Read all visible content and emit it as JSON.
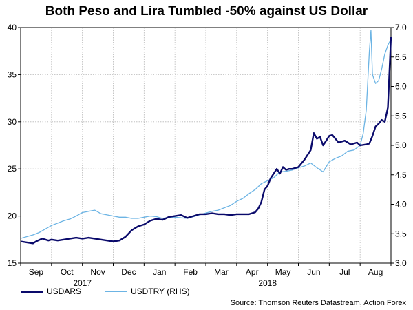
{
  "chart_data": {
    "type": "line",
    "title": "Both Peso and Lira Tumbled -50% against US Dollar",
    "left_axis": {
      "ylim": [
        15,
        40
      ],
      "ticks": [
        15,
        20,
        25,
        30,
        35,
        40
      ]
    },
    "right_axis": {
      "ylim": [
        3.0,
        7.0
      ],
      "ticks": [
        "3.0",
        "3.5",
        "4.0",
        "4.5",
        "5.0",
        "5.5",
        "6.0",
        "6.5",
        "7.0"
      ]
    },
    "x_range": [
      0,
      12
    ],
    "months": [
      {
        "label": "Sep",
        "pos": 0.5
      },
      {
        "label": "Oct",
        "pos": 1.5
      },
      {
        "label": "Nov",
        "pos": 2.5
      },
      {
        "label": "Dec",
        "pos": 3.5
      },
      {
        "label": "Jan",
        "pos": 4.5
      },
      {
        "label": "Feb",
        "pos": 5.5
      },
      {
        "label": "Mar",
        "pos": 6.5
      },
      {
        "label": "Apr",
        "pos": 7.5
      },
      {
        "label": "May",
        "pos": 8.5
      },
      {
        "label": "Jun",
        "pos": 9.5
      },
      {
        "label": "Jul",
        "pos": 10.5
      },
      {
        "label": "Aug",
        "pos": 11.5
      }
    ],
    "years": [
      {
        "label": "2017",
        "pos": 2.0
      },
      {
        "label": "2018",
        "pos": 8.0
      }
    ],
    "gridlines_x": [
      1,
      2,
      3,
      4,
      5,
      6,
      7,
      8,
      9,
      10,
      11
    ],
    "series": [
      {
        "name": "USDARS",
        "axis": "left",
        "color": "#0a0a6b",
        "x": [
          0,
          0.2,
          0.4,
          0.5,
          0.7,
          0.9,
          1.0,
          1.2,
          1.4,
          1.6,
          1.8,
          2.0,
          2.2,
          2.4,
          2.6,
          2.8,
          3.0,
          3.2,
          3.4,
          3.6,
          3.8,
          4.0,
          4.2,
          4.4,
          4.6,
          4.8,
          5.0,
          5.2,
          5.4,
          5.6,
          5.8,
          6.0,
          6.2,
          6.4,
          6.6,
          6.8,
          7.0,
          7.2,
          7.4,
          7.6,
          7.7,
          7.8,
          7.9,
          8.0,
          8.1,
          8.2,
          8.3,
          8.4,
          8.5,
          8.6,
          8.7,
          8.8,
          9.0,
          9.2,
          9.4,
          9.5,
          9.6,
          9.7,
          9.8,
          9.9,
          10.0,
          10.1,
          10.3,
          10.5,
          10.7,
          10.9,
          11.0,
          11.2,
          11.3,
          11.4,
          11.5,
          11.6,
          11.7,
          11.8,
          11.9,
          12.0
        ],
        "values": [
          17.3,
          17.2,
          17.1,
          17.3,
          17.6,
          17.4,
          17.5,
          17.4,
          17.5,
          17.6,
          17.7,
          17.6,
          17.7,
          17.6,
          17.5,
          17.4,
          17.3,
          17.4,
          17.8,
          18.5,
          18.9,
          19.1,
          19.5,
          19.7,
          19.6,
          19.9,
          20.0,
          20.1,
          19.8,
          20.0,
          20.2,
          20.2,
          20.3,
          20.2,
          20.2,
          20.1,
          20.2,
          20.2,
          20.2,
          20.4,
          20.8,
          21.5,
          22.8,
          23.2,
          24.0,
          24.5,
          25.0,
          24.5,
          25.2,
          24.9,
          25.0,
          25.0,
          25.2,
          26.0,
          27.0,
          28.8,
          28.2,
          28.4,
          27.5,
          28.0,
          28.5,
          28.6,
          27.8,
          28.0,
          27.6,
          27.8,
          27.5,
          27.6,
          27.7,
          28.5,
          29.5,
          29.8,
          30.2,
          30.0,
          31.5,
          39.0
        ]
      },
      {
        "name": "USDTRY (RHS)",
        "axis": "right",
        "color": "#6cb4e4",
        "x": [
          0,
          0.2,
          0.4,
          0.6,
          0.8,
          1.0,
          1.2,
          1.4,
          1.6,
          1.8,
          2.0,
          2.2,
          2.4,
          2.6,
          2.8,
          3.0,
          3.2,
          3.4,
          3.6,
          3.8,
          4.0,
          4.2,
          4.4,
          4.6,
          4.8,
          5.0,
          5.2,
          5.4,
          5.6,
          5.8,
          6.0,
          6.2,
          6.4,
          6.6,
          6.8,
          7.0,
          7.2,
          7.4,
          7.6,
          7.8,
          8.0,
          8.2,
          8.4,
          8.6,
          8.8,
          9.0,
          9.2,
          9.4,
          9.6,
          9.8,
          10.0,
          10.2,
          10.4,
          10.6,
          10.8,
          11.0,
          11.1,
          11.2,
          11.3,
          11.35,
          11.4,
          11.5,
          11.6,
          11.7,
          11.8,
          11.9,
          12.0
        ],
        "values": [
          3.42,
          3.45,
          3.48,
          3.52,
          3.58,
          3.64,
          3.68,
          3.72,
          3.75,
          3.8,
          3.86,
          3.88,
          3.9,
          3.84,
          3.82,
          3.8,
          3.78,
          3.78,
          3.76,
          3.76,
          3.78,
          3.8,
          3.79,
          3.76,
          3.78,
          3.78,
          3.77,
          3.76,
          3.79,
          3.82,
          3.85,
          3.88,
          3.9,
          3.94,
          3.98,
          4.05,
          4.1,
          4.18,
          4.25,
          4.35,
          4.4,
          4.45,
          4.55,
          4.56,
          4.58,
          4.62,
          4.65,
          4.7,
          4.62,
          4.55,
          4.72,
          4.78,
          4.82,
          4.9,
          4.92,
          5.0,
          5.2,
          5.6,
          6.6,
          6.95,
          6.2,
          6.05,
          6.1,
          6.3,
          6.55,
          6.7,
          6.8
        ]
      }
    ]
  },
  "legend": {
    "usdars_label": "USDARS",
    "usdtry_label": "USDTRY (RHS)"
  },
  "source": "Source: Thomson Reuters Datastream, Action Forex"
}
